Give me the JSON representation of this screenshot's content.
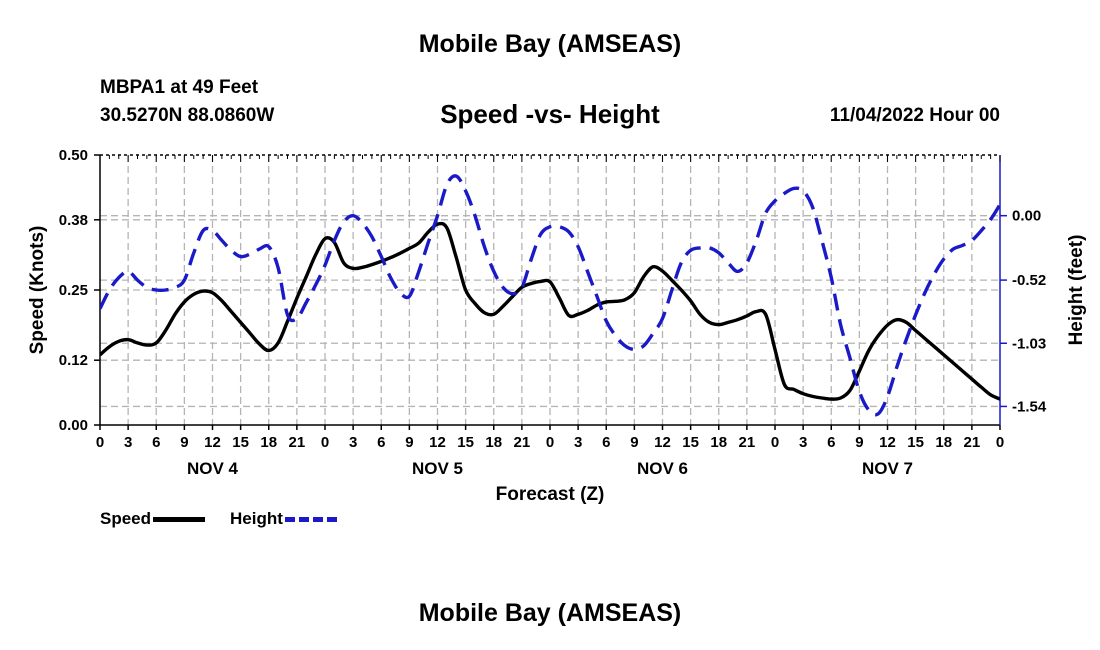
{
  "header": {
    "title": "Mobile Bay (AMSEAS)",
    "station": "MBPA1 at 49 Feet",
    "coords": "30.5270N  88.0860W",
    "subtitle": "Speed -vs- Height",
    "datetime": "11/04/2022 Hour 00"
  },
  "footer": {
    "title": "Mobile Bay (AMSEAS)"
  },
  "legend": {
    "speed": "Speed",
    "height": "Height"
  },
  "colors": {
    "speed": "#000000",
    "height": "#1a1ac8",
    "grid": "#b4b4b4"
  },
  "chart_data": {
    "type": "line",
    "title": "Speed -vs- Height",
    "xlabel": "Forecast (Z)",
    "ylabel": "Speed (Knots)",
    "y2label": "Height (feet)",
    "x_hours": [
      0,
      96
    ],
    "ylim": [
      0,
      0.5
    ],
    "y2lim": [
      -1.69,
      0.49
    ],
    "yticks": [
      0.0,
      0.12,
      0.25,
      0.38,
      0.5
    ],
    "ytick_labels": [
      "0.00",
      "0.12",
      "0.25",
      "0.38",
      "0.50"
    ],
    "y2ticks": [
      -1.54,
      -1.03,
      -0.52,
      0.0
    ],
    "y2tick_labels": [
      "-1.54",
      "-1.03",
      "-0.52",
      "0.00"
    ],
    "xtick_labels": [
      "0",
      "3",
      "6",
      "9",
      "12",
      "15",
      "18",
      "21",
      "0",
      "3",
      "6",
      "9",
      "12",
      "15",
      "18",
      "21",
      "0",
      "3",
      "6",
      "9",
      "12",
      "15",
      "18",
      "21",
      "0",
      "3",
      "6",
      "9",
      "12",
      "15",
      "18",
      "21",
      "0"
    ],
    "day_labels": [
      {
        "hour": 12,
        "label": "NOV 4"
      },
      {
        "hour": 36,
        "label": "NOV 5"
      },
      {
        "hour": 60,
        "label": "NOV 6"
      },
      {
        "hour": 84,
        "label": "NOV 7"
      }
    ],
    "grid": true,
    "series": [
      {
        "name": "Speed",
        "axis": "left",
        "style": "solid",
        "points": [
          [
            0,
            0.13
          ],
          [
            1,
            0.145
          ],
          [
            2,
            0.155
          ],
          [
            3,
            0.158
          ],
          [
            4,
            0.152
          ],
          [
            5,
            0.148
          ],
          [
            6,
            0.152
          ],
          [
            7,
            0.175
          ],
          [
            8,
            0.205
          ],
          [
            9,
            0.228
          ],
          [
            10,
            0.242
          ],
          [
            11,
            0.248
          ],
          [
            12,
            0.245
          ],
          [
            13,
            0.23
          ],
          [
            14,
            0.21
          ],
          [
            15,
            0.19
          ],
          [
            16,
            0.17
          ],
          [
            17,
            0.15
          ],
          [
            18,
            0.138
          ],
          [
            19,
            0.152
          ],
          [
            20,
            0.192
          ],
          [
            21,
            0.235
          ],
          [
            22,
            0.275
          ],
          [
            23,
            0.315
          ],
          [
            24,
            0.345
          ],
          [
            25,
            0.338
          ],
          [
            26,
            0.3
          ],
          [
            27,
            0.29
          ],
          [
            28,
            0.292
          ],
          [
            29,
            0.297
          ],
          [
            30,
            0.303
          ],
          [
            31,
            0.31
          ],
          [
            32,
            0.318
          ],
          [
            33,
            0.327
          ],
          [
            34,
            0.337
          ],
          [
            35,
            0.357
          ],
          [
            36,
            0.372
          ],
          [
            37,
            0.365
          ],
          [
            38,
            0.31
          ],
          [
            39,
            0.25
          ],
          [
            40,
            0.225
          ],
          [
            41,
            0.208
          ],
          [
            42,
            0.205
          ],
          [
            43,
            0.22
          ],
          [
            44,
            0.238
          ],
          [
            45,
            0.255
          ],
          [
            46,
            0.262
          ],
          [
            47,
            0.266
          ],
          [
            48,
            0.265
          ],
          [
            49,
            0.235
          ],
          [
            50,
            0.203
          ],
          [
            51,
            0.205
          ],
          [
            52,
            0.212
          ],
          [
            53,
            0.222
          ],
          [
            54,
            0.228
          ],
          [
            55,
            0.229
          ],
          [
            56,
            0.232
          ],
          [
            57,
            0.245
          ],
          [
            58,
            0.275
          ],
          [
            59,
            0.293
          ],
          [
            60,
            0.285
          ],
          [
            61,
            0.268
          ],
          [
            62,
            0.25
          ],
          [
            63,
            0.23
          ],
          [
            64,
            0.205
          ],
          [
            65,
            0.19
          ],
          [
            66,
            0.186
          ],
          [
            67,
            0.19
          ],
          [
            68,
            0.195
          ],
          [
            69,
            0.202
          ],
          [
            70,
            0.21
          ],
          [
            71,
            0.205
          ],
          [
            72,
            0.14
          ],
          [
            73,
            0.075
          ],
          [
            74,
            0.066
          ],
          [
            75,
            0.058
          ],
          [
            76,
            0.053
          ],
          [
            77,
            0.05
          ],
          [
            78,
            0.048
          ],
          [
            79,
            0.05
          ],
          [
            80,
            0.064
          ],
          [
            81,
            0.1
          ],
          [
            82,
            0.138
          ],
          [
            83,
            0.165
          ],
          [
            84,
            0.185
          ],
          [
            85,
            0.195
          ],
          [
            86,
            0.19
          ],
          [
            87,
            0.175
          ],
          [
            88,
            0.16
          ],
          [
            89,
            0.145
          ],
          [
            90,
            0.13
          ],
          [
            91,
            0.115
          ],
          [
            92,
            0.1
          ],
          [
            93,
            0.085
          ],
          [
            94,
            0.07
          ],
          [
            95,
            0.056
          ],
          [
            96,
            0.048
          ]
        ]
      },
      {
        "name": "Height",
        "axis": "right",
        "style": "dashed",
        "points": [
          [
            0,
            -0.75
          ],
          [
            1,
            -0.6
          ],
          [
            2,
            -0.5
          ],
          [
            3,
            -0.45
          ],
          [
            4,
            -0.52
          ],
          [
            5,
            -0.58
          ],
          [
            6,
            -0.6
          ],
          [
            7,
            -0.6
          ],
          [
            8,
            -0.58
          ],
          [
            9,
            -0.52
          ],
          [
            10,
            -0.3
          ],
          [
            11,
            -0.12
          ],
          [
            12,
            -0.12
          ],
          [
            13,
            -0.2
          ],
          [
            14,
            -0.28
          ],
          [
            15,
            -0.33
          ],
          [
            16,
            -0.31
          ],
          [
            17,
            -0.27
          ],
          [
            18,
            -0.25
          ],
          [
            19,
            -0.42
          ],
          [
            20,
            -0.8
          ],
          [
            21,
            -0.83
          ],
          [
            22,
            -0.7
          ],
          [
            23,
            -0.56
          ],
          [
            24,
            -0.4
          ],
          [
            25,
            -0.2
          ],
          [
            26,
            -0.05
          ],
          [
            27,
            0.0
          ],
          [
            28,
            -0.06
          ],
          [
            29,
            -0.17
          ],
          [
            30,
            -0.33
          ],
          [
            31,
            -0.5
          ],
          [
            32,
            -0.62
          ],
          [
            33,
            -0.65
          ],
          [
            34,
            -0.45
          ],
          [
            35,
            -0.22
          ],
          [
            36,
            0.0
          ],
          [
            37,
            0.25
          ],
          [
            38,
            0.32
          ],
          [
            39,
            0.2
          ],
          [
            40,
            0.0
          ],
          [
            41,
            -0.25
          ],
          [
            42,
            -0.45
          ],
          [
            43,
            -0.58
          ],
          [
            44,
            -0.63
          ],
          [
            45,
            -0.58
          ],
          [
            46,
            -0.35
          ],
          [
            47,
            -0.15
          ],
          [
            48,
            -0.09
          ],
          [
            49,
            -0.09
          ],
          [
            50,
            -0.13
          ],
          [
            51,
            -0.25
          ],
          [
            52,
            -0.45
          ],
          [
            53,
            -0.65
          ],
          [
            54,
            -0.85
          ],
          [
            55,
            -0.97
          ],
          [
            56,
            -1.05
          ],
          [
            57,
            -1.08
          ],
          [
            58,
            -1.05
          ],
          [
            59,
            -0.95
          ],
          [
            60,
            -0.83
          ],
          [
            61,
            -0.6
          ],
          [
            62,
            -0.38
          ],
          [
            63,
            -0.28
          ],
          [
            64,
            -0.26
          ],
          [
            65,
            -0.26
          ],
          [
            66,
            -0.3
          ],
          [
            67,
            -0.38
          ],
          [
            68,
            -0.45
          ],
          [
            69,
            -0.38
          ],
          [
            70,
            -0.2
          ],
          [
            71,
            0.02
          ],
          [
            72,
            0.12
          ],
          [
            73,
            0.18
          ],
          [
            74,
            0.22
          ],
          [
            75,
            0.2
          ],
          [
            76,
            0.07
          ],
          [
            77,
            -0.2
          ],
          [
            78,
            -0.5
          ],
          [
            79,
            -0.88
          ],
          [
            80,
            -1.15
          ],
          [
            81,
            -1.42
          ],
          [
            82,
            -1.57
          ],
          [
            83,
            -1.6
          ],
          [
            84,
            -1.46
          ],
          [
            85,
            -1.22
          ],
          [
            86,
            -1.0
          ],
          [
            87,
            -0.8
          ],
          [
            88,
            -0.62
          ],
          [
            89,
            -0.47
          ],
          [
            90,
            -0.35
          ],
          [
            91,
            -0.27
          ],
          [
            92,
            -0.24
          ],
          [
            93,
            -0.2
          ],
          [
            94,
            -0.12
          ],
          [
            95,
            -0.03
          ],
          [
            96,
            0.09
          ]
        ]
      }
    ]
  }
}
